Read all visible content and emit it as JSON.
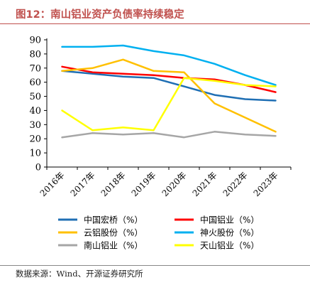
{
  "header": {
    "title": "图12：南山铝业资产负债率持续稳定"
  },
  "footer": {
    "source": "数据来源：Wind、开源证券研究所"
  },
  "chart_data": {
    "type": "line",
    "title": "",
    "xlabel": "",
    "ylabel": "",
    "ylim": [
      0,
      90
    ],
    "yticks": [
      0,
      10,
      20,
      30,
      40,
      50,
      60,
      70,
      80,
      90
    ],
    "categories": [
      "2016年",
      "2017年",
      "2018年",
      "2019年",
      "2020年",
      "2021年",
      "2022年",
      "2023年"
    ],
    "grid": false,
    "legend_position": "bottom",
    "series": [
      {
        "name": "中国宏桥（%）",
        "color": "#1f6fb4",
        "values": [
          68,
          66,
          64,
          63,
          57,
          51,
          48,
          47
        ]
      },
      {
        "name": "中国铝业（%）",
        "color": "#ff0000",
        "values": [
          71,
          67,
          66,
          65,
          63,
          62,
          58,
          53
        ]
      },
      {
        "name": "云铝股份（%）",
        "color": "#ffc000",
        "values": [
          68,
          70,
          76,
          68,
          67,
          45,
          35,
          25
        ]
      },
      {
        "name": "神火股份（%）",
        "color": "#00b0f0",
        "values": [
          85,
          85,
          86,
          82,
          79,
          73,
          65,
          58
        ]
      },
      {
        "name": "南山铝业（%）",
        "color": "#a6a6a6",
        "values": [
          21,
          24,
          23,
          24,
          21,
          25,
          23,
          22
        ]
      },
      {
        "name": "天山铝业（%）",
        "color": "#ffff00",
        "values": [
          40,
          26,
          28,
          26,
          63,
          61,
          58,
          57
        ]
      }
    ]
  }
}
